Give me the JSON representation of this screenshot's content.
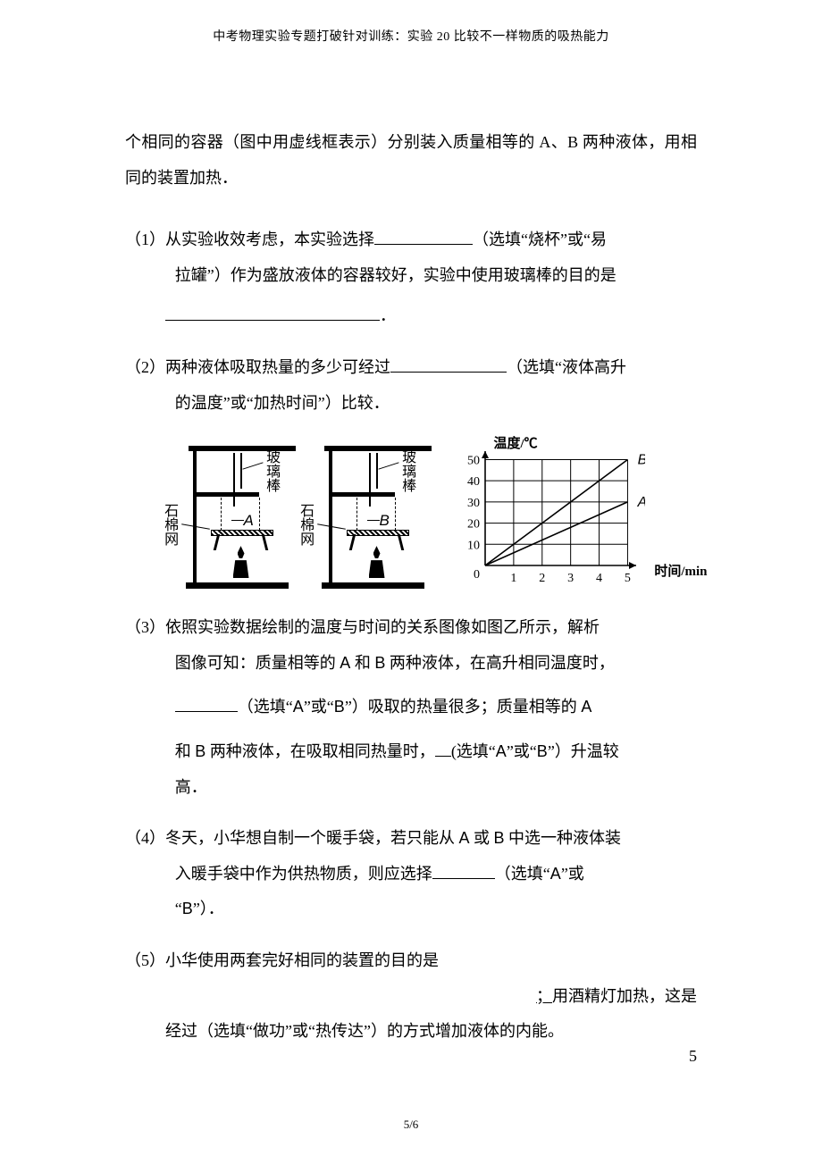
{
  "header": "中考物理实验专题打破针对训练：实验 20 比较不一样物质的吸热能力",
  "intro": "个相同的容器（图中用虚线框表示）分别装入质量相等的 A、B 两种液体，用相同的装置加热．",
  "q1": {
    "num": "（1）",
    "t1": "从实验收效考虑，本实验选择",
    "t2": "（选填“烧杯”或“易拉罐”）作为盛放液体的容器较好，实验中使用玻璃棒的目的是",
    "t3": "．"
  },
  "q2": {
    "num": "（2）",
    "t1": "两种液体吸取热量的多少可经过",
    "t2": "（选填“液体高升的温度”或“加热时间”）比较．"
  },
  "q3": {
    "num": "（3）",
    "t1": "依照实验数据绘制的温度与时间的关系图像如图乙所示，解析图像可知：质量相等的 A 和 B 两种液体，在高升相同温度时，",
    "t2": "（选填“A”或“B”）吸取的热量很多；质量相等的 A和 B 两种液体，在吸取相同热量时，",
    "t3": "(选填“A”或“B”）升温较高．"
  },
  "q4": {
    "num": "（4）",
    "t1": "冬天，小华想自制一个暖手袋，若只能从 A 或 B 中选一种液体装入暖手袋中作为供热物质，则应选择",
    "t2": "（选填“A”或“B”）．"
  },
  "q5": {
    "num": "（5）",
    "t1": "小华使用两套完好相同的装置的目的是",
    "t2": "；",
    "t3": "用酒精灯加热，这是经过（选填“做功”或“热传达”）的方式增加液体的内能。"
  },
  "fig": {
    "label_rod": "玻璃棒",
    "label_mesh": "石棉网",
    "beaker_labels": [
      "A",
      "B"
    ],
    "chart": {
      "type": "line",
      "y_title": "温度/℃",
      "x_title": "时间/min",
      "x_ticks": [
        1,
        2,
        3,
        4,
        5
      ],
      "y_ticks": [
        10,
        20,
        30,
        40,
        50
      ],
      "xlim": [
        0,
        5.3
      ],
      "ylim": [
        0,
        54
      ],
      "series": [
        {
          "name": "A",
          "points": [
            [
              0,
              0
            ],
            [
              5,
              30
            ]
          ],
          "label_pos": [
            5.35,
            30
          ],
          "color": "#000000"
        },
        {
          "name": "B",
          "points": [
            [
              0,
              0
            ],
            [
              5,
              50
            ]
          ],
          "label_pos": [
            5.35,
            50
          ],
          "color": "#000000"
        }
      ],
      "grid_color": "#000000",
      "line_width": 1.6,
      "tick_fontsize": 14
    }
  },
  "page_num_right": "5",
  "page_num_center": "5/6"
}
